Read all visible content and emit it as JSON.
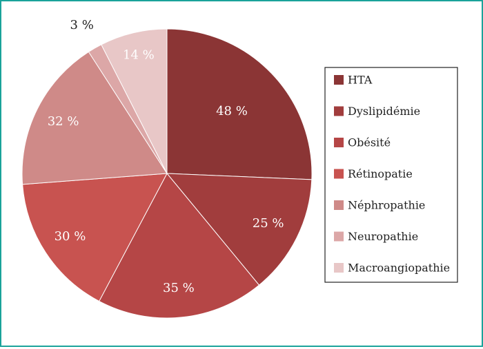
{
  "chart_data": {
    "type": "pie",
    "title": "",
    "legend_placement": "right",
    "start_angle_deg": 0,
    "direction": "clockwise",
    "slices": [
      {
        "label": "HTA",
        "value": 48,
        "value_label": "48 %",
        "color": "#8b3535"
      },
      {
        "label": "Dyslipidémie",
        "value": 25,
        "value_label": "25 %",
        "color": "#a13d3d"
      },
      {
        "label": "Obésité",
        "value": 35,
        "value_label": "35 %",
        "color": "#b54646"
      },
      {
        "label": "Rétinopatie",
        "value": 30,
        "value_label": "30 %",
        "color": "#c85350"
      },
      {
        "label": "Néphropathie",
        "value": 32,
        "value_label": "32 %",
        "color": "#cf8a88"
      },
      {
        "label": "Neuropathie",
        "value": 3,
        "value_label": "3 %",
        "color": "#dca7a7"
      },
      {
        "label": "Macroangiopathie",
        "value": 14,
        "value_label": "14 %",
        "color": "#e8c7c7"
      }
    ]
  }
}
